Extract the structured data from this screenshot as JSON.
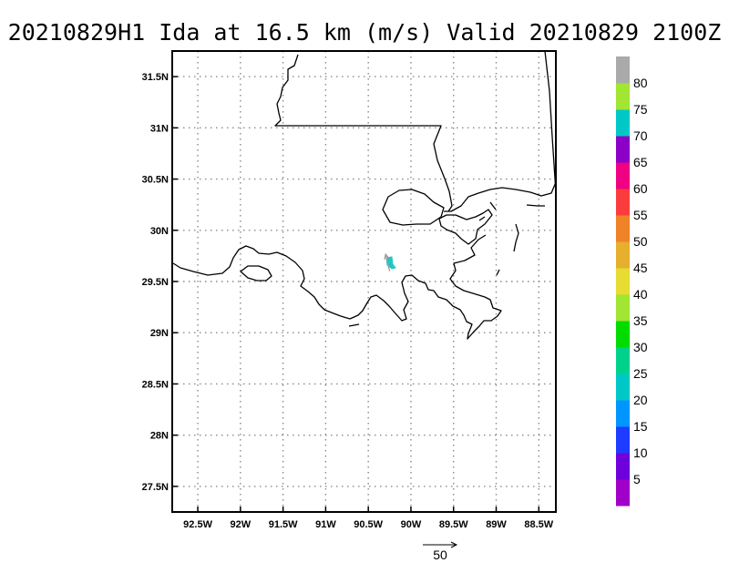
{
  "title": "20210829H1 Ida at 16.5 km (m/s) Valid 20210829 2100Z",
  "map": {
    "lon_range": [
      -92.8,
      -88.3
    ],
    "lat_range": [
      27.25,
      31.75
    ],
    "lat_ticks": [
      {
        "value": 27.5,
        "label": "27.5N"
      },
      {
        "value": 28.0,
        "label": "28N"
      },
      {
        "value": 28.5,
        "label": "28.5N"
      },
      {
        "value": 29.0,
        "label": "29N"
      },
      {
        "value": 29.5,
        "label": "29.5N"
      },
      {
        "value": 30.0,
        "label": "30N"
      },
      {
        "value": 30.5,
        "label": "30.5N"
      },
      {
        "value": 31.0,
        "label": "31N"
      },
      {
        "value": 31.5,
        "label": "31.5N"
      }
    ],
    "lon_ticks": [
      {
        "value": -92.5,
        "label": "92.5W"
      },
      {
        "value": -92.0,
        "label": "92W"
      },
      {
        "value": -91.5,
        "label": "91.5W"
      },
      {
        "value": -91.0,
        "label": "91W"
      },
      {
        "value": -90.5,
        "label": "90.5W"
      },
      {
        "value": -90.0,
        "label": "90W"
      },
      {
        "value": -89.5,
        "label": "89.5W"
      },
      {
        "value": -89.0,
        "label": "89W"
      },
      {
        "value": -88.5,
        "label": "88.5W"
      }
    ],
    "grid": true,
    "wind_vectors": [
      {
        "lon": -90.25,
        "lat": 29.6,
        "u": -6,
        "v": 26
      }
    ],
    "wind_region_color": "#1ec8c8",
    "reference_vector_label": "50"
  },
  "colorbar": {
    "colors": [
      "#a000c8",
      "#6e00dc",
      "#1e3cff",
      "#0096ff",
      "#00c8c8",
      "#00d28c",
      "#00dc00",
      "#a0e632",
      "#e6dc32",
      "#e6af2d",
      "#f08228",
      "#fa3c3c",
      "#f00082",
      "#8c00c8",
      "#00c8c8",
      "#a0e632",
      "#aaaaaa"
    ],
    "labels": [
      "5",
      "10",
      "15",
      "20",
      "25",
      "30",
      "35",
      "40",
      "45",
      "50",
      "55",
      "60",
      "65",
      "70",
      "75",
      "80"
    ]
  }
}
